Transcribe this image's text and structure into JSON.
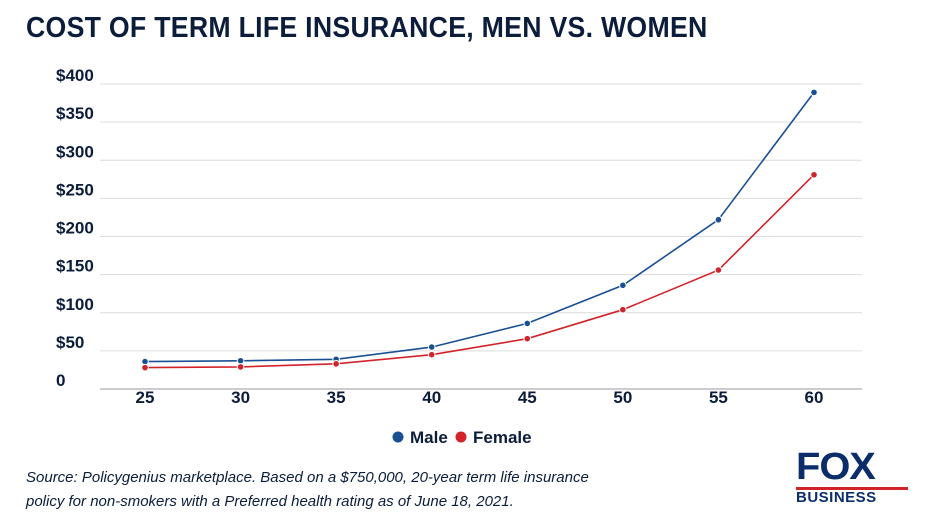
{
  "chart_data": {
    "type": "line",
    "title": "COST OF TERM LIFE INSURANCE, MEN VS. WOMEN",
    "x": [
      25,
      30,
      35,
      40,
      45,
      50,
      55,
      60
    ],
    "x_tick_labels": [
      "25",
      "30",
      "35",
      "40",
      "45",
      "50",
      "55",
      "60"
    ],
    "y_tick_labels": [
      "0",
      "$50",
      "$100",
      "$150",
      "$200",
      "$250",
      "$300",
      "$350",
      "$400"
    ],
    "y_ticks": [
      0,
      50,
      100,
      150,
      200,
      250,
      300,
      350,
      400
    ],
    "ylim": [
      0,
      400
    ],
    "xlabel": "",
    "ylabel": "",
    "grid": true,
    "legend_position": "bottom-center",
    "series": [
      {
        "name": "Male",
        "color": "#1a4f93",
        "values": [
          36,
          37,
          39,
          55,
          86,
          136,
          222,
          389
        ]
      },
      {
        "name": "Female",
        "color": "#d2232a",
        "values": [
          28,
          29,
          33,
          45,
          66,
          104,
          156,
          281
        ]
      }
    ]
  },
  "source_note": "Source: Policygenius marketplace. Based on a $750,000, 20-year term life insurance policy for non-smokers with a Preferred health rating as of June 18, 2021.",
  "logo": {
    "brand": "FOX",
    "sub": "BUSINESS"
  }
}
